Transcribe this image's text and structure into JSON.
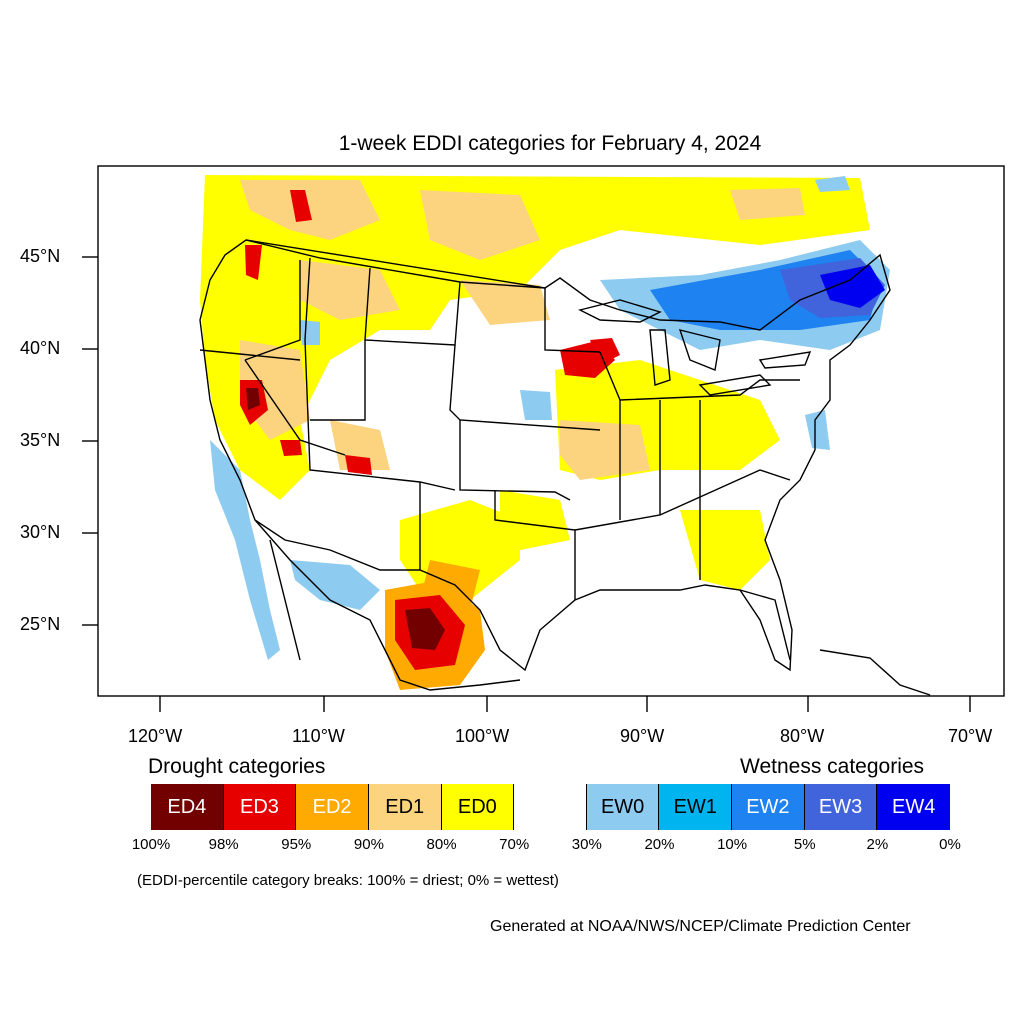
{
  "title": "1-week EDDI categories for February 4, 2024",
  "lat_labels": [
    "45°N",
    "40°N",
    "35°N",
    "30°N",
    "25°N"
  ],
  "lon_labels": [
    "120°W",
    "110°W",
    "100°W",
    "90°W",
    "80°W",
    "70°W"
  ],
  "legend": {
    "drought_heading": "Drought categories",
    "wetness_heading": "Wetness categories",
    "categories": [
      {
        "label": "ED4",
        "color": "#730000",
        "text_color": "#ffffff"
      },
      {
        "label": "ED3",
        "color": "#e60000",
        "text_color": "#ffffff"
      },
      {
        "label": "ED2",
        "color": "#ffaa00",
        "text_color": "#ffffff"
      },
      {
        "label": "ED1",
        "color": "#fcd37f",
        "text_color": "#000000"
      },
      {
        "label": "ED0",
        "color": "#ffff00",
        "text_color": "#000000"
      },
      {
        "label": "",
        "color": "#ffffff",
        "text_color": "#000000"
      },
      {
        "label": "EW0",
        "color": "#8ecbf0",
        "text_color": "#000000"
      },
      {
        "label": "EW1",
        "color": "#00b4f0",
        "text_color": "#000000"
      },
      {
        "label": "EW2",
        "color": "#1e82f0",
        "text_color": "#ffffff"
      },
      {
        "label": "EW3",
        "color": "#4164dc",
        "text_color": "#ffffff"
      },
      {
        "label": "EW4",
        "color": "#0000f0",
        "text_color": "#ffffff"
      }
    ],
    "breaks": [
      "100%",
      "98%",
      "95%",
      "90%",
      "80%",
      "70%",
      "30%",
      "20%",
      "10%",
      "5%",
      "2%",
      "0%"
    ],
    "note": "(EDDI-percentile category breaks: 100% = driest; 0% = wettest)"
  },
  "credit": "Generated at NOAA/NWS/NCEP/Climate Prediction Center"
}
